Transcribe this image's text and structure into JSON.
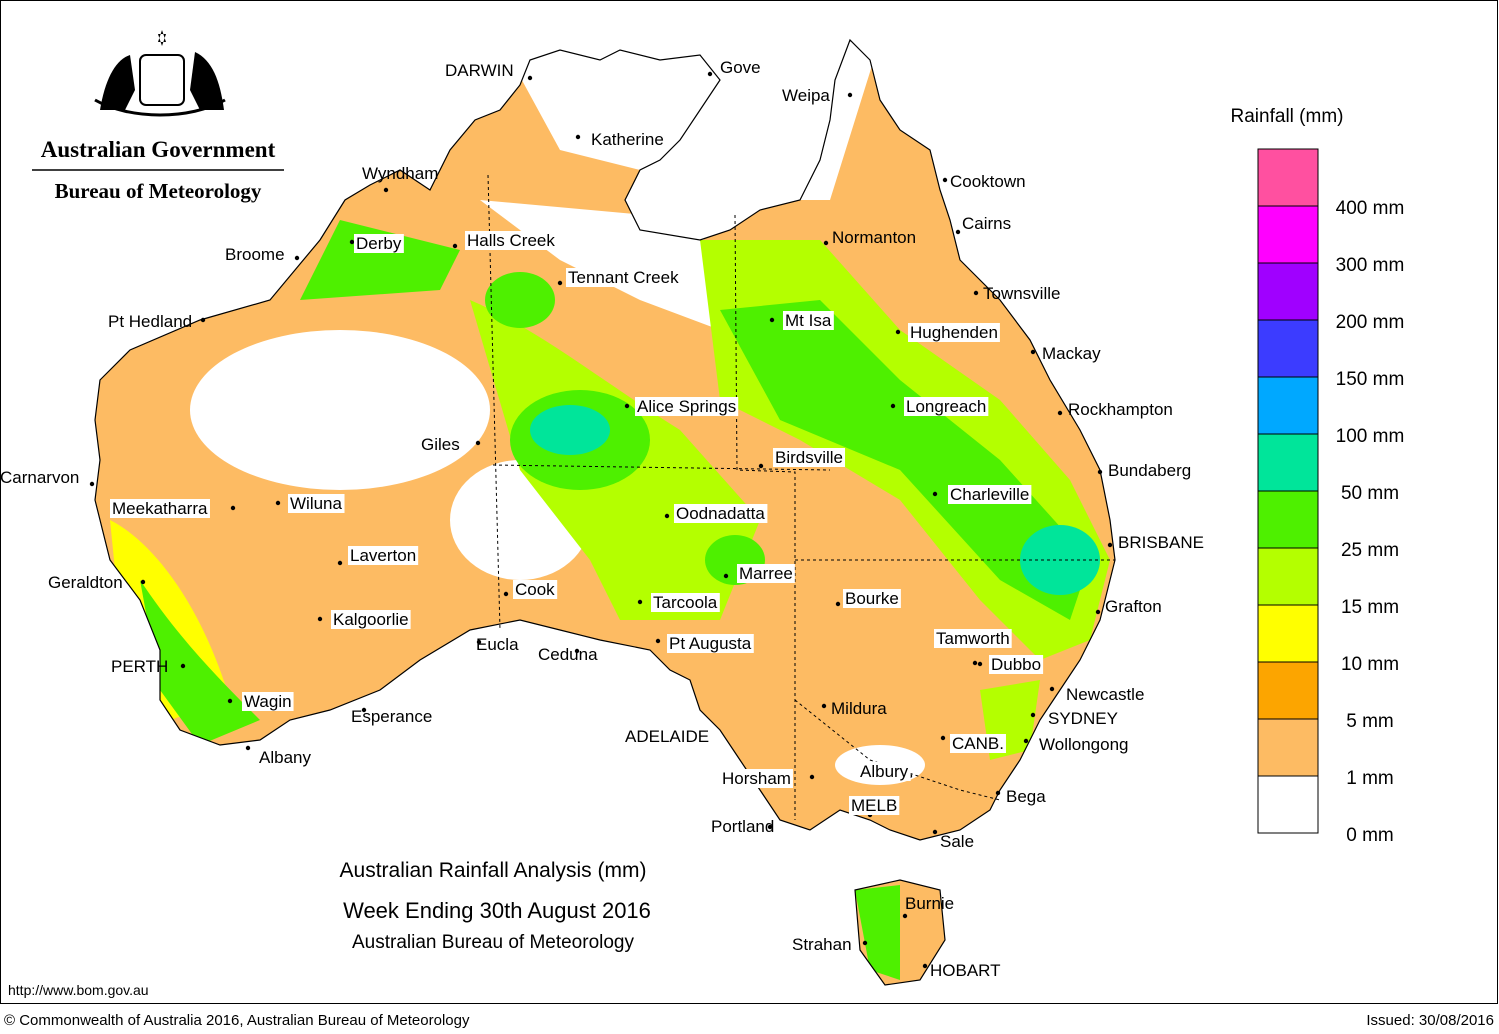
{
  "header": {
    "government": "Australian Government",
    "bureau": "Bureau of Meteorology"
  },
  "map": {
    "cities": [
      "DARWIN",
      "Gove",
      "Weipa",
      "Katherine",
      "Wyndham",
      "Cooktown",
      "Cairns",
      "Normanton",
      "Broome",
      "Derby",
      "Halls Creek",
      "Tennant Creek",
      "Townsville",
      "Pt Hedland",
      "Mt Isa",
      "Hughenden",
      "Mackay",
      "Longreach",
      "Rockhampton",
      "Alice Springs",
      "Giles",
      "Birdsville",
      "Bundaberg",
      "Carnarvon",
      "Charleville",
      "Meekatharra",
      "Wiluna",
      "Oodnadatta",
      "BRISBANE",
      "Laverton",
      "Marree",
      "Geraldton",
      "Cook",
      "Bourke",
      "Tarcoola",
      "Grafton",
      "Kalgoorlie",
      "Tamworth",
      "Eucla",
      "Pt Augusta",
      "Ceduna",
      "Dubbo",
      "PERTH",
      "Newcastle",
      "Wagin",
      "Mildura",
      "Esperance",
      "SYDNEY",
      "ADELAIDE",
      "CANB.",
      "Wollongong",
      "Albany",
      "Albury",
      "Horsham",
      "Bega",
      "MELB",
      "Portland",
      "Sale",
      "Burnie",
      "Strahan",
      "HOBART"
    ]
  },
  "title": {
    "line1": "Australian Rainfall Analysis (mm)",
    "line2": "Week Ending 30th August 2016",
    "line3": "Australian Bureau of Meteorology"
  },
  "legend": {
    "title": "Rainfall (mm)",
    "levels": [
      {
        "label": "0 mm",
        "color": "#ffffff"
      },
      {
        "label": "1 mm",
        "color": "#fdbb63"
      },
      {
        "label": "5 mm",
        "color": "#fca500"
      },
      {
        "label": "10 mm",
        "color": "#ffff00"
      },
      {
        "label": "15 mm",
        "color": "#b4ff00"
      },
      {
        "label": "25 mm",
        "color": "#4ef000"
      },
      {
        "label": "50 mm",
        "color": "#00e59a"
      },
      {
        "label": "100 mm",
        "color": "#00a8ff"
      },
      {
        "label": "150 mm",
        "color": "#3c3cff"
      },
      {
        "label": "200 mm",
        "color": "#a000ff"
      },
      {
        "label": "300 mm",
        "color": "#ff00ff"
      },
      {
        "label": "400 mm",
        "color": "#ff50a0"
      }
    ]
  },
  "footer": {
    "url": "http://www.bom.gov.au",
    "copyright": "© Commonwealth of Australia 2016, Australian Bureau of Meteorology",
    "issued": "Issued: 30/08/2016"
  }
}
